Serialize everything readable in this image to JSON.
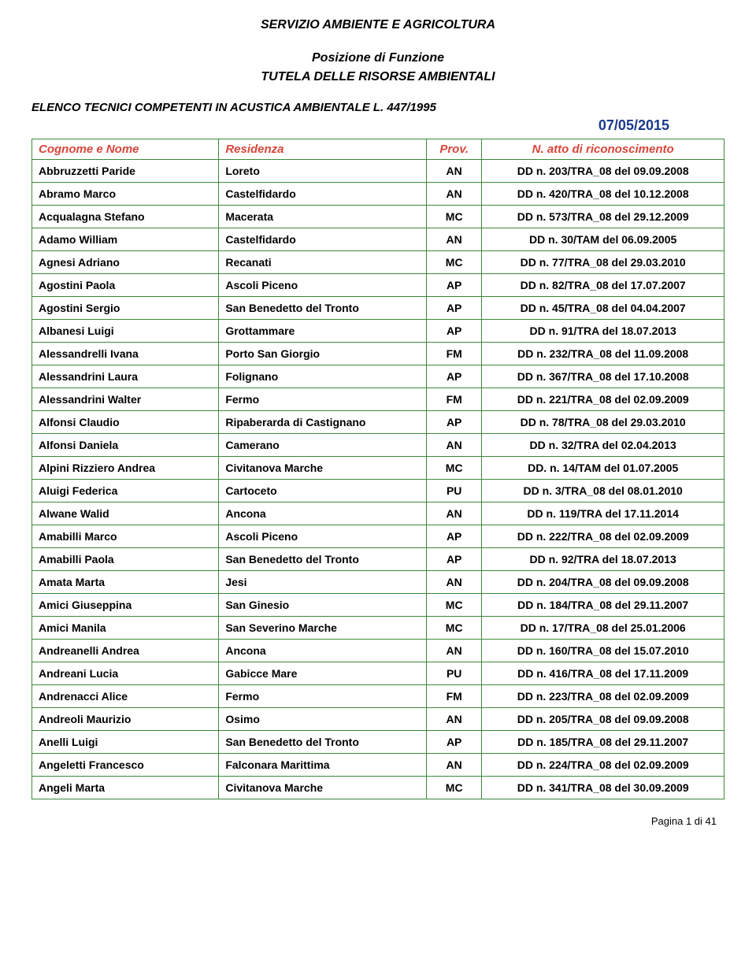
{
  "header": {
    "line1": "SERVIZIO AMBIENTE E AGRICOLTURA",
    "line2": "Posizione di Funzione",
    "line3": "TUTELA DELLE RISORSE AMBIENTALI"
  },
  "subheader": "ELENCO TECNICI COMPETENTI IN ACUSTICA AMBIENTALE L. 447/1995",
  "date": "07/05/2015",
  "columns": {
    "c0": "Cognome e Nome",
    "c1": "Residenza",
    "c2": "Prov.",
    "c3": "N. atto di riconoscimento"
  },
  "rows": [
    {
      "name": "Abbruzzetti Paride",
      "res": "Loreto",
      "prov": "AN",
      "atto": "DD n. 203/TRA_08 del 09.09.2008"
    },
    {
      "name": "Abramo Marco",
      "res": "Castelfidardo",
      "prov": "AN",
      "atto": "DD n. 420/TRA_08 del 10.12.2008"
    },
    {
      "name": "Acqualagna Stefano",
      "res": "Macerata",
      "prov": "MC",
      "atto": "DD n. 573/TRA_08 del 29.12.2009"
    },
    {
      "name": "Adamo William",
      "res": "Castelfidardo",
      "prov": "AN",
      "atto": "DD n. 30/TAM del 06.09.2005"
    },
    {
      "name": "Agnesi Adriano",
      "res": "Recanati",
      "prov": "MC",
      "atto": "DD n. 77/TRA_08 del 29.03.2010"
    },
    {
      "name": "Agostini Paola",
      "res": "Ascoli Piceno",
      "prov": "AP",
      "atto": "DD n. 82/TRA_08 del 17.07.2007"
    },
    {
      "name": "Agostini Sergio",
      "res": "San Benedetto del Tronto",
      "prov": "AP",
      "atto": "DD n. 45/TRA_08 del 04.04.2007"
    },
    {
      "name": "Albanesi Luigi",
      "res": "Grottammare",
      "prov": "AP",
      "atto": "DD n. 91/TRA del 18.07.2013"
    },
    {
      "name": "Alessandrelli Ivana",
      "res": "Porto San Giorgio",
      "prov": "FM",
      "atto": "DD n. 232/TRA_08 del 11.09.2008"
    },
    {
      "name": "Alessandrini Laura",
      "res": "Folignano",
      "prov": "AP",
      "atto": "DD n. 367/TRA_08 del 17.10.2008"
    },
    {
      "name": "Alessandrini Walter",
      "res": "Fermo",
      "prov": "FM",
      "atto": "DD n. 221/TRA_08 del 02.09.2009"
    },
    {
      "name": "Alfonsi Claudio",
      "res": "Ripaberarda di Castignano",
      "prov": "AP",
      "atto": "DD n. 78/TRA_08 del 29.03.2010"
    },
    {
      "name": "Alfonsi Daniela",
      "res": "Camerano",
      "prov": "AN",
      "atto": "DD n. 32/TRA del 02.04.2013"
    },
    {
      "name": "Alpini Rizziero Andrea",
      "res": "Civitanova Marche",
      "prov": "MC",
      "atto": "DD. n. 14/TAM del 01.07.2005"
    },
    {
      "name": "Aluigi Federica",
      "res": "Cartoceto",
      "prov": "PU",
      "atto": "DD n. 3/TRA_08 del 08.01.2010"
    },
    {
      "name": "Alwane Walid",
      "res": "Ancona",
      "prov": "AN",
      "atto": "DD n. 119/TRA del 17.11.2014"
    },
    {
      "name": "Amabilli Marco",
      "res": "Ascoli Piceno",
      "prov": "AP",
      "atto": "DD n. 222/TRA_08 del 02.09.2009"
    },
    {
      "name": "Amabilli Paola",
      "res": "San Benedetto del Tronto",
      "prov": "AP",
      "atto": "DD n. 92/TRA del 18.07.2013"
    },
    {
      "name": "Amata Marta",
      "res": "Jesi",
      "prov": "AN",
      "atto": "DD n. 204/TRA_08 del 09.09.2008"
    },
    {
      "name": "Amici Giuseppina",
      "res": "San Ginesio",
      "prov": "MC",
      "atto": "DD n. 184/TRA_08 del 29.11.2007"
    },
    {
      "name": "Amici Manila",
      "res": "San Severino Marche",
      "prov": "MC",
      "atto": "DD n. 17/TRA_08 del 25.01.2006"
    },
    {
      "name": "Andreanelli Andrea",
      "res": "Ancona",
      "prov": "AN",
      "atto": "DD n. 160/TRA_08 del 15.07.2010"
    },
    {
      "name": "Andreani Lucia",
      "res": "Gabicce Mare",
      "prov": "PU",
      "atto": "DD n. 416/TRA_08 del 17.11.2009"
    },
    {
      "name": "Andrenacci Alice",
      "res": "Fermo",
      "prov": "FM",
      "atto": "DD n. 223/TRA_08 del 02.09.2009"
    },
    {
      "name": "Andreoli Maurizio",
      "res": "Osimo",
      "prov": "AN",
      "atto": "DD n. 205/TRA_08 del 09.09.2008"
    },
    {
      "name": "Anelli Luigi",
      "res": "San Benedetto del Tronto",
      "prov": "AP",
      "atto": "DD n. 185/TRA_08 del 29.11.2007"
    },
    {
      "name": "Angeletti Francesco",
      "res": "Falconara Marittima",
      "prov": "AN",
      "atto": "DD n. 224/TRA_08 del 02.09.2009"
    },
    {
      "name": "Angeli Marta",
      "res": "Civitanova Marche",
      "prov": "MC",
      "atto": "DD n. 341/TRA_08 del 30.09.2009"
    }
  ],
  "footer": "Pagina 1 di 41",
  "style": {
    "border_color": "#3b8a3b",
    "header_text_color": "#d9463a",
    "date_color": "#1a3a8a"
  }
}
